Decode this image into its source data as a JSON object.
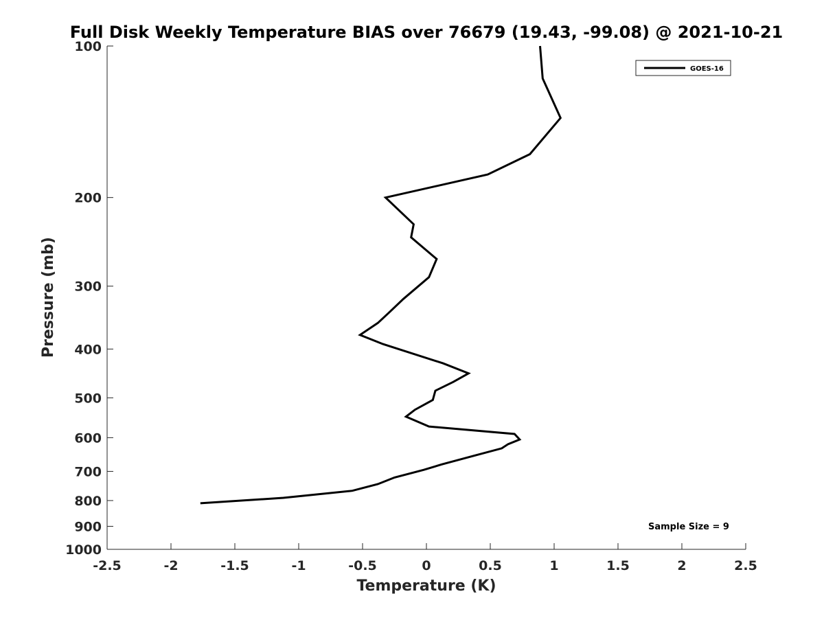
{
  "chart_data": {
    "type": "line",
    "title": "Full Disk Weekly Temperature BIAS over 76679 (19.43, -99.08) @ 2021-10-21",
    "xlabel": "Temperature (K)",
    "ylabel": "Pressure (mb)",
    "xlim": [
      -2.5,
      2.5
    ],
    "ylim": [
      100,
      1000
    ],
    "y_scale": "log",
    "y_reversed": true,
    "grid": false,
    "legend_position": "top-right",
    "x_ticks": [
      "-2.5",
      "-2",
      "-1.5",
      "-1",
      "-0.5",
      "0",
      "0.5",
      "1",
      "1.5",
      "2",
      "2.5"
    ],
    "y_ticks": [
      "100",
      "200",
      "300",
      "400",
      "500",
      "600",
      "700",
      "800",
      "900",
      "1000"
    ],
    "series": [
      {
        "name": "GOES-16",
        "color": "#000000",
        "x": [
          0.89,
          0.91,
          1.05,
          0.81,
          0.48,
          -0.32,
          -0.1,
          -0.12,
          0.08,
          0.02,
          -0.18,
          -0.29,
          -0.38,
          -0.52,
          -0.34,
          0.13,
          0.33,
          0.21,
          0.07,
          0.05,
          -0.09,
          -0.16,
          0.02,
          0.69,
          0.73,
          0.64,
          0.59,
          0.37,
          0.12,
          -0.02,
          -0.25,
          -0.38,
          -0.58,
          -1.12,
          -1.77
        ],
        "y": [
          100,
          116,
          139,
          164,
          180,
          200,
          226,
          240,
          265,
          288,
          318,
          338,
          355,
          375,
          391,
          427,
          447,
          465,
          484,
          505,
          528,
          545,
          570,
          590,
          605,
          618,
          630,
          652,
          678,
          695,
          720,
          742,
          765,
          790,
          810
        ]
      }
    ],
    "annotations": [
      "Sample Size = 9"
    ]
  }
}
